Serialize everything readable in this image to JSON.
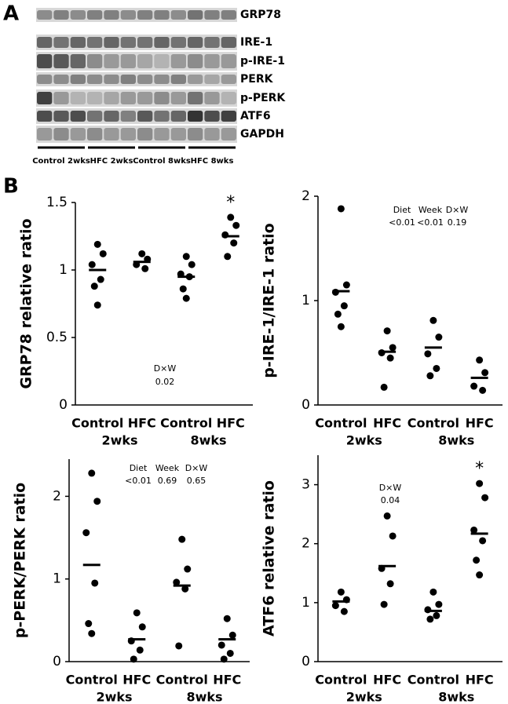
{
  "panel_labels": [
    "A",
    "B"
  ],
  "blot": {
    "bands": [
      "GRP78",
      "IRE-1",
      "p-IRE-1",
      "PERK",
      "p-PERK",
      "ATF6",
      "GAPDH"
    ],
    "lane_groups": [
      "Control 2wks",
      "HFC 2wks",
      "Control 8wks",
      "HFC 8wks"
    ]
  },
  "chart_data": [
    {
      "type": "dot",
      "y_label": "GRP78 relative ratio",
      "categories": [
        "Control",
        "HFC",
        "Control",
        "HFC"
      ],
      "groups": [
        "2wks",
        "8wks"
      ],
      "ylim": [
        0,
        1.5
      ],
      "yticks": [
        0,
        0.5,
        1,
        1.5
      ],
      "points": [
        [
          1.19,
          1.12,
          1.04,
          0.93,
          0.88,
          0.74
        ],
        [
          1.12,
          1.08,
          1.04,
          1.01
        ],
        [
          1.1,
          1.04,
          0.97,
          0.95,
          0.86,
          0.79
        ],
        [
          1.39,
          1.33,
          1.26,
          1.2,
          1.1
        ]
      ],
      "means": [
        1.0,
        1.06,
        0.95,
        1.25
      ],
      "marker_labels": [
        null,
        null,
        null,
        "*"
      ],
      "stats": {
        "headers": [
          "D×W"
        ],
        "values": [
          "0.02"
        ]
      }
    },
    {
      "type": "dot",
      "y_label": "p-IRE-1/IRE-1 ratio",
      "categories": [
        "Control",
        "HFC",
        "Control",
        "HFC"
      ],
      "groups": [
        "2wks",
        "8wks"
      ],
      "ylim": [
        0,
        2
      ],
      "yticks": [
        0,
        1,
        2
      ],
      "points": [
        [
          1.88,
          1.15,
          1.08,
          0.95,
          0.87,
          0.75
        ],
        [
          0.71,
          0.55,
          0.5,
          0.45,
          0.17
        ],
        [
          0.81,
          0.65,
          0.49,
          0.35,
          0.28
        ],
        [
          0.43,
          0.31,
          0.18,
          0.14
        ]
      ],
      "means": [
        1.09,
        0.51,
        0.55,
        0.26
      ],
      "marker_labels": [
        null,
        null,
        null,
        null
      ],
      "stats": {
        "headers": [
          "Diet",
          "Week",
          "D×W"
        ],
        "values": [
          "<0.01",
          "<0.01",
          "0.19"
        ]
      }
    },
    {
      "type": "dot",
      "y_label": "p-PERK/PERK ratio",
      "categories": [
        "Control",
        "HFC",
        "Control",
        "HFC"
      ],
      "groups": [
        "2wks",
        "8wks"
      ],
      "ylim": [
        0,
        2.45
      ],
      "yticks": [
        0,
        1,
        2
      ],
      "points": [
        [
          2.28,
          1.94,
          1.56,
          0.95,
          0.46,
          0.34
        ],
        [
          0.59,
          0.42,
          0.25,
          0.14,
          0.03
        ],
        [
          1.48,
          1.12,
          0.96,
          0.88,
          0.19
        ],
        [
          0.52,
          0.32,
          0.2,
          0.1,
          0.03
        ]
      ],
      "means": [
        1.17,
        0.27,
        0.92,
        0.27
      ],
      "marker_labels": [
        null,
        null,
        null,
        null
      ],
      "stats": {
        "headers": [
          "Diet",
          "Week",
          "D×W"
        ],
        "values": [
          "<0.01",
          "0.69",
          "0.65"
        ]
      }
    },
    {
      "type": "dot",
      "y_label": "ATF6 relative ratio",
      "categories": [
        "Control",
        "HFC",
        "Control",
        "HFC"
      ],
      "groups": [
        "2wks",
        "8wks"
      ],
      "ylim": [
        0,
        3.5
      ],
      "yticks": [
        0,
        1,
        2,
        3
      ],
      "points": [
        [
          1.18,
          1.05,
          0.95,
          0.85
        ],
        [
          2.47,
          2.13,
          1.58,
          1.32,
          0.97
        ],
        [
          1.18,
          0.97,
          0.88,
          0.78,
          0.72
        ],
        [
          3.02,
          2.78,
          2.23,
          2.05,
          1.72,
          1.47
        ]
      ],
      "means": [
        1.02,
        1.62,
        0.86,
        2.17
      ],
      "marker_labels": [
        null,
        null,
        null,
        "*"
      ],
      "stats": {
        "headers": [
          "D×W"
        ],
        "values": [
          "0.04"
        ]
      }
    }
  ]
}
